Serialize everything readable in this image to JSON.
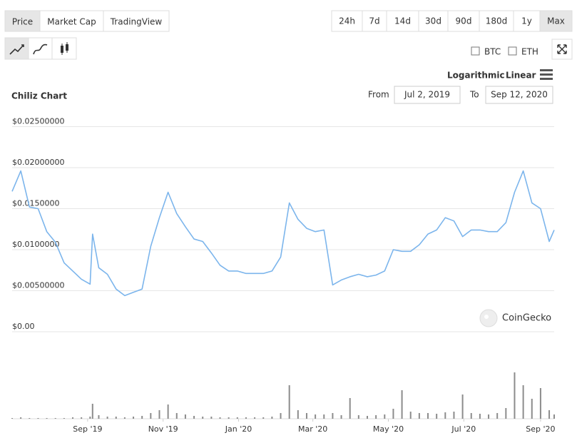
{
  "ui": {
    "tabs": [
      "Price",
      "Market Cap",
      "TradingView"
    ],
    "selected_tab": 0,
    "ranges": [
      "24h",
      "7d",
      "14d",
      "30d",
      "90d",
      "180d",
      "1y",
      "Max"
    ],
    "selected_range": 7,
    "compare": [
      "BTC",
      "ETH"
    ],
    "scales": [
      "Logarithmic",
      "Linear"
    ],
    "from_label": "From",
    "from_date": "Jul 2, 2019",
    "to_label": "To",
    "to_date": "Sep 12, 2020",
    "watermark": "CoinGecko"
  },
  "chart_data": {
    "type": "line",
    "title": "Chiliz Chart",
    "x": [
      "2019-07-02",
      "2019-07-09",
      "2019-07-16",
      "2019-07-23",
      "2019-07-30",
      "2019-08-06",
      "2019-08-13",
      "2019-08-20",
      "2019-08-27",
      "2019-09-03",
      "2019-09-05",
      "2019-09-10",
      "2019-09-17",
      "2019-09-24",
      "2019-10-01",
      "2019-10-08",
      "2019-10-15",
      "2019-10-22",
      "2019-10-29",
      "2019-11-05",
      "2019-11-12",
      "2019-11-19",
      "2019-11-26",
      "2019-12-03",
      "2019-12-10",
      "2019-12-17",
      "2019-12-24",
      "2019-12-31",
      "2020-01-07",
      "2020-01-14",
      "2020-01-21",
      "2020-01-28",
      "2020-02-04",
      "2020-02-11",
      "2020-02-18",
      "2020-02-25",
      "2020-03-03",
      "2020-03-10",
      "2020-03-17",
      "2020-03-24",
      "2020-03-31",
      "2020-04-07",
      "2020-04-14",
      "2020-04-21",
      "2020-04-28",
      "2020-05-05",
      "2020-05-12",
      "2020-05-19",
      "2020-05-26",
      "2020-06-02",
      "2020-06-09",
      "2020-06-16",
      "2020-06-23",
      "2020-06-30",
      "2020-07-07",
      "2020-07-14",
      "2020-07-21",
      "2020-07-28",
      "2020-08-04",
      "2020-08-11",
      "2020-08-18",
      "2020-08-25",
      "2020-09-01",
      "2020-09-08",
      "2020-09-12"
    ],
    "series": [
      {
        "name": "Price",
        "color": "#7cb5ec",
        "values": [
          0.0171,
          0.0196,
          0.0152,
          0.015,
          0.0122,
          0.0109,
          0.0084,
          0.0074,
          0.0064,
          0.0058,
          0.0119,
          0.0078,
          0.007,
          0.0052,
          0.0044,
          0.0048,
          0.0052,
          0.0104,
          0.0139,
          0.017,
          0.0144,
          0.0128,
          0.0113,
          0.011,
          0.0096,
          0.0081,
          0.0074,
          0.0074,
          0.0071,
          0.0071,
          0.0071,
          0.0074,
          0.0091,
          0.0157,
          0.0137,
          0.0126,
          0.0122,
          0.0124,
          0.0057,
          0.0063,
          0.0067,
          0.007,
          0.0067,
          0.0069,
          0.0074,
          0.01,
          0.0098,
          0.0098,
          0.0106,
          0.0119,
          0.0124,
          0.0139,
          0.0135,
          0.0116,
          0.0124,
          0.0124,
          0.0122,
          0.0122,
          0.0133,
          0.017,
          0.0196,
          0.0157,
          0.015,
          0.011,
          0.0124
        ]
      },
      {
        "name": "Volume",
        "color": "#8c8c8c",
        "axis": "y2",
        "values": [
          1,
          2,
          1,
          1,
          1,
          1,
          1,
          2,
          2,
          3,
          21,
          5,
          3,
          3,
          2,
          3,
          4,
          8,
          12,
          20,
          8,
          6,
          4,
          3,
          3,
          2,
          2,
          2,
          2,
          2,
          2,
          3,
          8,
          47,
          12,
          8,
          6,
          6,
          8,
          5,
          29,
          5,
          4,
          5,
          6,
          14,
          40,
          10,
          8,
          8,
          7,
          9,
          10,
          34,
          8,
          7,
          6,
          8,
          15,
          65,
          47,
          28,
          43,
          12,
          6
        ]
      }
    ],
    "xlim": [
      "2019-07-02",
      "2020-09-12"
    ],
    "xticks": [
      {
        "value": "2019-09-01",
        "label": "Sep '19"
      },
      {
        "value": "2019-11-01",
        "label": "Nov '19"
      },
      {
        "value": "2020-01-01",
        "label": "Jan '20"
      },
      {
        "value": "2020-03-01",
        "label": "Mar '20"
      },
      {
        "value": "2020-05-01",
        "label": "May '20"
      },
      {
        "value": "2020-07-01",
        "label": "Jul '20"
      },
      {
        "value": "2020-09-01",
        "label": "Sep '20"
      }
    ],
    "ylim": [
      0,
      0.025
    ],
    "yticks": [
      {
        "value": 0,
        "label": "$0.00"
      },
      {
        "value": 0.005,
        "label": "$0.00500000"
      },
      {
        "value": 0.01,
        "label": "$0.0100000"
      },
      {
        "value": 0.015,
        "label": "$0.0150000"
      },
      {
        "value": 0.02,
        "label": "$0.02000000"
      },
      {
        "value": 0.025,
        "label": "$0.02500000"
      }
    ],
    "y2lim": [
      0,
      70
    ],
    "grid": true
  }
}
